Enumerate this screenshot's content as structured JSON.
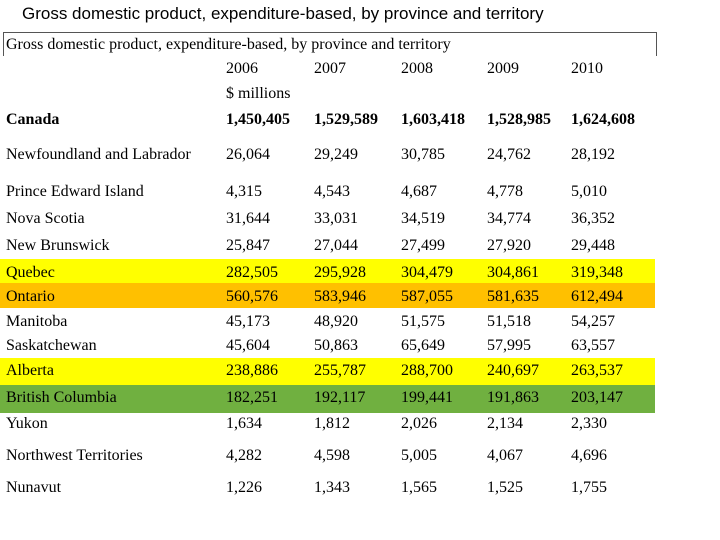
{
  "slide_title": "Gross domestic product, expenditure-based, by province and territory",
  "table": {
    "title": "Gross domestic product, expenditure-based, by province and territory",
    "years": [
      "2006",
      "2007",
      "2008",
      "2009",
      "2010"
    ],
    "unit": "$ millions",
    "highlight_colors": {
      "yellow": "#ffff00",
      "orange": "#ffc000",
      "green": "#70b040"
    },
    "rows": [
      {
        "name": "Canada",
        "values": [
          "1,450,405",
          "1,529,589",
          "1,603,418",
          "1,528,985",
          "1,624,608"
        ]
      },
      {
        "name": "Newfoundland and Labrador",
        "values": [
          "26,064",
          "29,249",
          "30,785",
          "24,762",
          "28,192"
        ]
      },
      {
        "name": "Prince Edward Island",
        "values": [
          "4,315",
          "4,543",
          "4,687",
          "4,778",
          "5,010"
        ]
      },
      {
        "name": "Nova Scotia",
        "values": [
          "31,644",
          "33,031",
          "34,519",
          "34,774",
          "36,352"
        ]
      },
      {
        "name": "New Brunswick",
        "values": [
          "25,847",
          "27,044",
          "27,499",
          "27,920",
          "29,448"
        ]
      },
      {
        "name": "Quebec",
        "values": [
          "282,505",
          "295,928",
          "304,479",
          "304,861",
          "319,348"
        ],
        "highlight": "yellow"
      },
      {
        "name": "Ontario",
        "values": [
          "560,576",
          "583,946",
          "587,055",
          "581,635",
          "612,494"
        ],
        "highlight": "orange"
      },
      {
        "name": "Manitoba",
        "values": [
          "45,173",
          "48,920",
          "51,575",
          "51,518",
          "54,257"
        ]
      },
      {
        "name": "Saskatchewan",
        "values": [
          "45,604",
          "50,863",
          "65,649",
          "57,995",
          "63,557"
        ]
      },
      {
        "name": "Alberta",
        "values": [
          "238,886",
          "255,787",
          "288,700",
          "240,697",
          "263,537"
        ],
        "highlight": "yellow"
      },
      {
        "name": "British Columbia",
        "values": [
          "182,251",
          "192,117",
          "199,441",
          "191,863",
          "203,147"
        ],
        "highlight": "green"
      },
      {
        "name": "Yukon",
        "values": [
          "1,634",
          "1,812",
          "2,026",
          "2,134",
          "2,330"
        ]
      },
      {
        "name": "Northwest Territories",
        "values": [
          "4,282",
          "4,598",
          "5,005",
          "4,067",
          "4,696"
        ]
      },
      {
        "name": "Nunavut",
        "values": [
          "1,226",
          "1,343",
          "1,565",
          "1,525",
          "1,755"
        ]
      }
    ]
  }
}
